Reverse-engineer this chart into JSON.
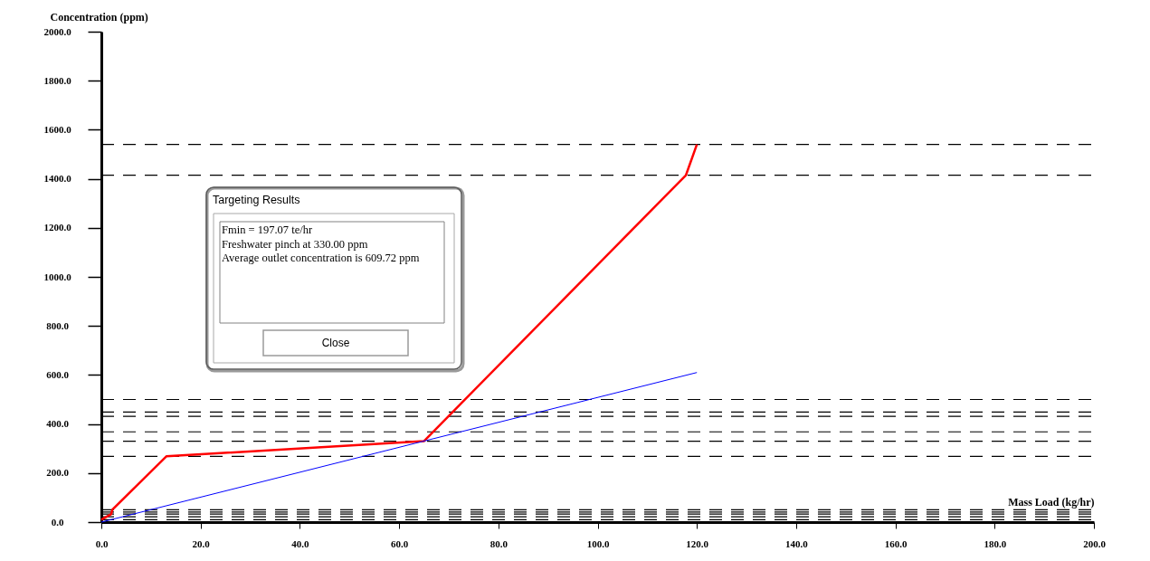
{
  "chart_data": {
    "type": "line",
    "xlabel": "Mass Load (kg/hr)",
    "ylabel": "Concentration (ppm)",
    "xlim": [
      0,
      200
    ],
    "ylim": [
      0,
      2000
    ],
    "xticks": [
      {
        "value": 0,
        "label": "0.0"
      },
      {
        "value": 20,
        "label": "20.0"
      },
      {
        "value": 40,
        "label": "40.0"
      },
      {
        "value": 60,
        "label": "60.0"
      },
      {
        "value": 80,
        "label": "80.0"
      },
      {
        "value": 100,
        "label": "100.0"
      },
      {
        "value": 120,
        "label": "120.0"
      },
      {
        "value": 140,
        "label": "140.0"
      },
      {
        "value": 160,
        "label": "160.0"
      },
      {
        "value": 180,
        "label": "180.0"
      },
      {
        "value": 200,
        "label": "200.0"
      }
    ],
    "yticks": [
      {
        "value": 0,
        "label": "0.0"
      },
      {
        "value": 200,
        "label": "200.0"
      },
      {
        "value": 400,
        "label": "400.0"
      },
      {
        "value": 600,
        "label": "600.0"
      },
      {
        "value": 800,
        "label": "800.0"
      },
      {
        "value": 1000,
        "label": "1000.0"
      },
      {
        "value": 1200,
        "label": "1200.0"
      },
      {
        "value": 1400,
        "label": "1400.0"
      },
      {
        "value": 1600,
        "label": "1600.0"
      },
      {
        "value": 1800,
        "label": "1800.0"
      },
      {
        "value": 2000,
        "label": "2000.0"
      }
    ],
    "grid": false,
    "legend": false,
    "marker": "none",
    "line_style": "solid",
    "series": [
      {
        "color": "#ff0000",
        "x": [
          0,
          2,
          2.2,
          13.1,
          65,
          117.8,
          120
        ],
        "values": [
          10,
          33,
          50,
          268,
          330,
          1415,
          1540
        ]
      },
      {
        "color": "#0000ff",
        "x": [
          0,
          120
        ],
        "values": [
          0,
          610
        ]
      }
    ],
    "ref_lines": [
      {
        "axis": "y",
        "value": 10,
        "color": "#000000",
        "line_style": "dashed"
      },
      {
        "axis": "y",
        "value": 22,
        "color": "#000000",
        "line_style": "dashed"
      },
      {
        "axis": "y",
        "value": 33,
        "color": "#000000",
        "line_style": "dashed"
      },
      {
        "axis": "y",
        "value": 41,
        "color": "#000000",
        "line_style": "dashed"
      },
      {
        "axis": "y",
        "value": 50,
        "color": "#000000",
        "line_style": "dashed"
      },
      {
        "axis": "y",
        "value": 268,
        "color": "#000000",
        "line_style": "dashed"
      },
      {
        "axis": "y",
        "value": 330,
        "color": "#000000",
        "line_style": "dashed"
      },
      {
        "axis": "y",
        "value": 368,
        "color": "#000000",
        "line_style": "dashed"
      },
      {
        "axis": "y",
        "value": 431,
        "color": "#000000",
        "line_style": "dashed"
      },
      {
        "axis": "y",
        "value": 449,
        "color": "#000000",
        "line_style": "dashed"
      },
      {
        "axis": "y",
        "value": 500,
        "color": "#000000",
        "line_style": "dashed"
      },
      {
        "axis": "y",
        "value": 1415,
        "color": "#000000",
        "line_style": "dashed"
      },
      {
        "axis": "y",
        "value": 1540,
        "color": "#000000",
        "line_style": "dashed"
      }
    ],
    "annotations": [
      "Targeting Results",
      "Fmin = 197.07 te/hr",
      "Freshwater pinch at 330.00 ppm",
      "Average outlet concentration is 609.72 ppm",
      "Close"
    ]
  }
}
